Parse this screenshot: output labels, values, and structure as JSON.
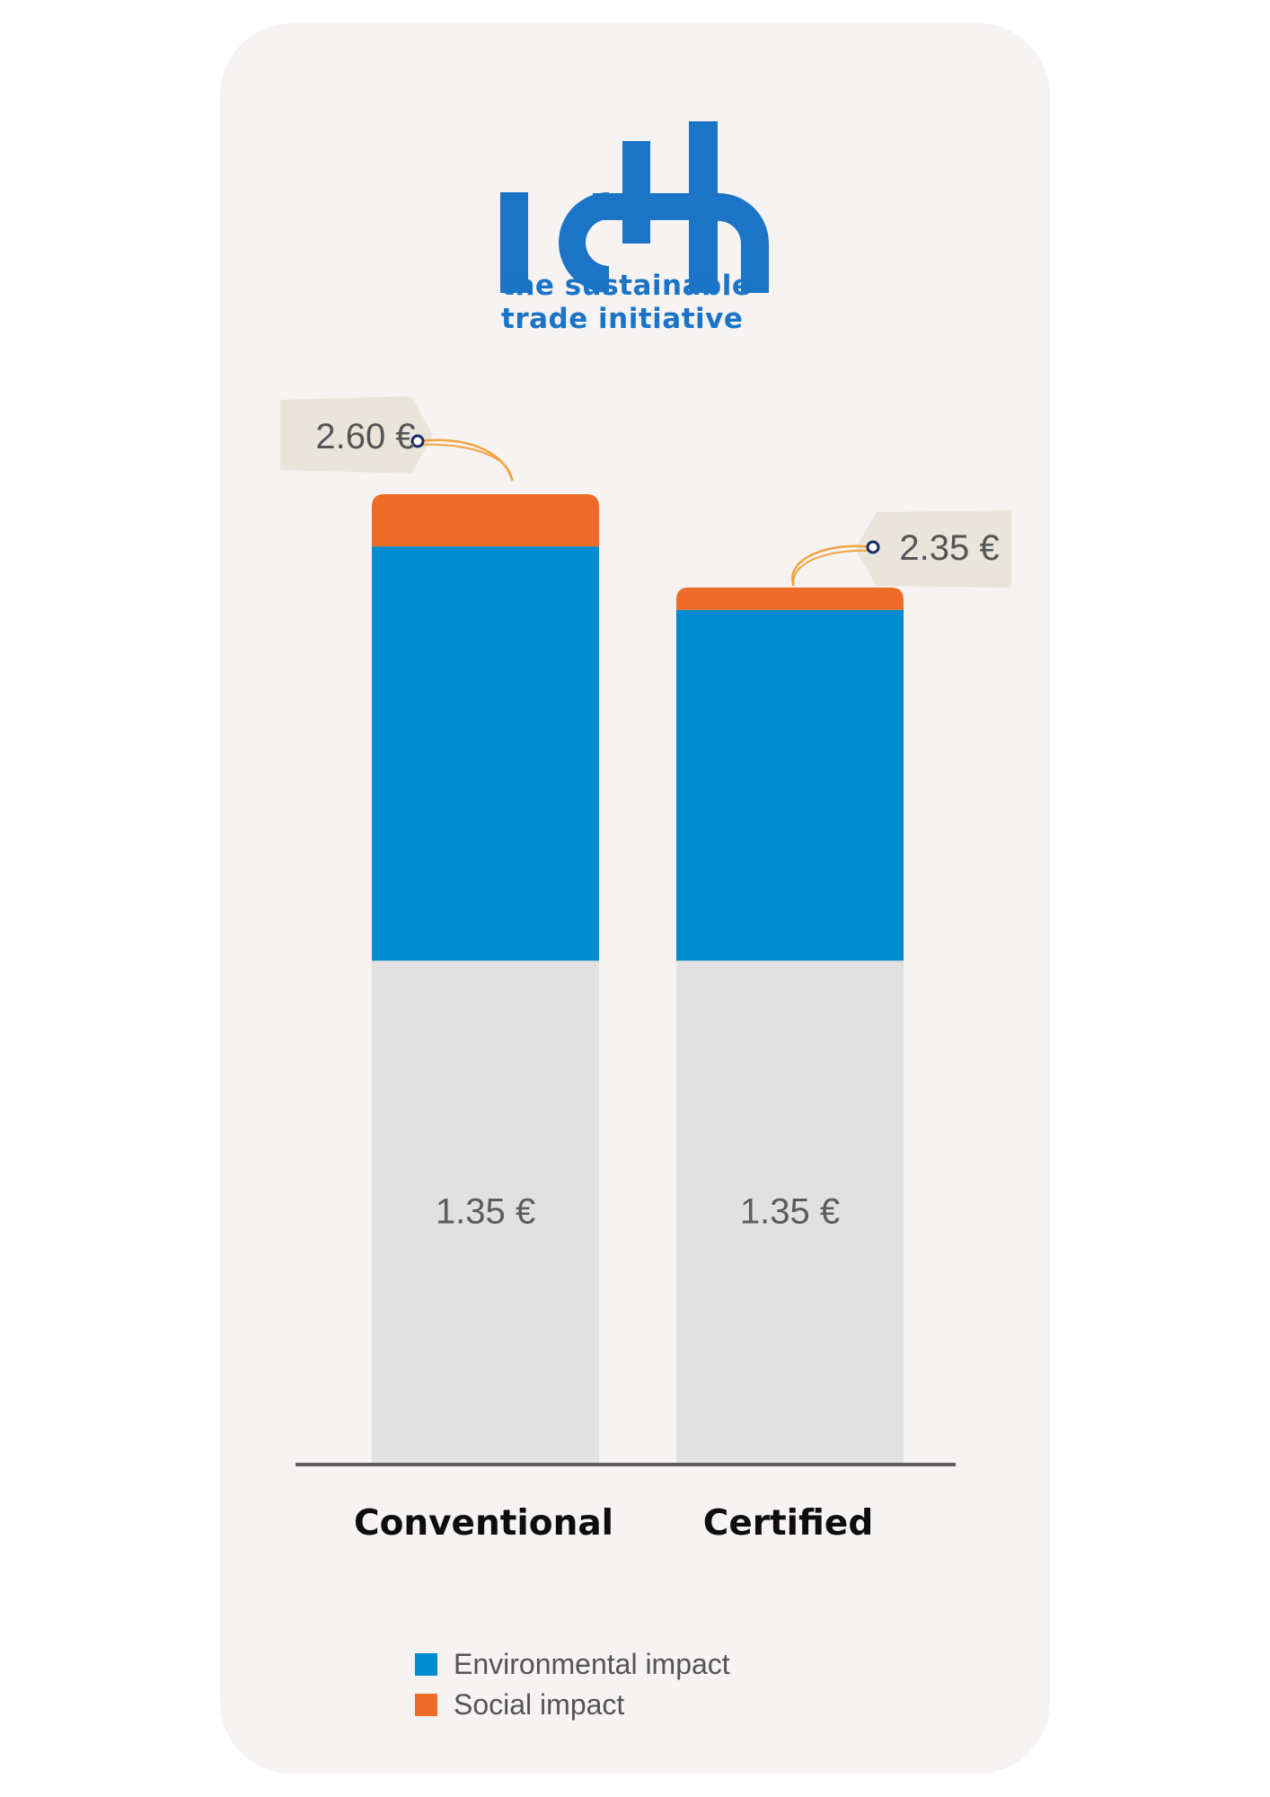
{
  "logo": {
    "wordmark": "idh",
    "tagline_line1": "the sustainable",
    "tagline_line2": "trade initiative",
    "color": "#1b74c5"
  },
  "chart_data": {
    "type": "bar",
    "stacked": true,
    "categories": [
      "Conventional",
      "Certified"
    ],
    "series": [
      {
        "key": "base",
        "values": [
          1.35,
          1.35
        ],
        "color": "#e1e1e1"
      },
      {
        "key": "environmental",
        "name": "Environmental impact",
        "values": [
          1.11,
          0.94
        ],
        "color": "#008cd0"
      },
      {
        "key": "social",
        "name": "Social impact",
        "values": [
          0.14,
          0.06
        ],
        "color": "#ee6b27"
      }
    ],
    "base_labels": [
      "1.35 €",
      "1.35 €"
    ],
    "totals": [
      2.6,
      2.35
    ],
    "total_labels": [
      "2.60 €",
      "2.35 €"
    ],
    "ylim": [
      0,
      2.6
    ],
    "grid": false,
    "legend_position": "bottom"
  },
  "colors": {
    "card": "#f6f3f2",
    "baseline": "#5f5f5f",
    "tag": "#e9e5db",
    "string": "#f3a33f",
    "eyelet": "#1a2b6e"
  }
}
